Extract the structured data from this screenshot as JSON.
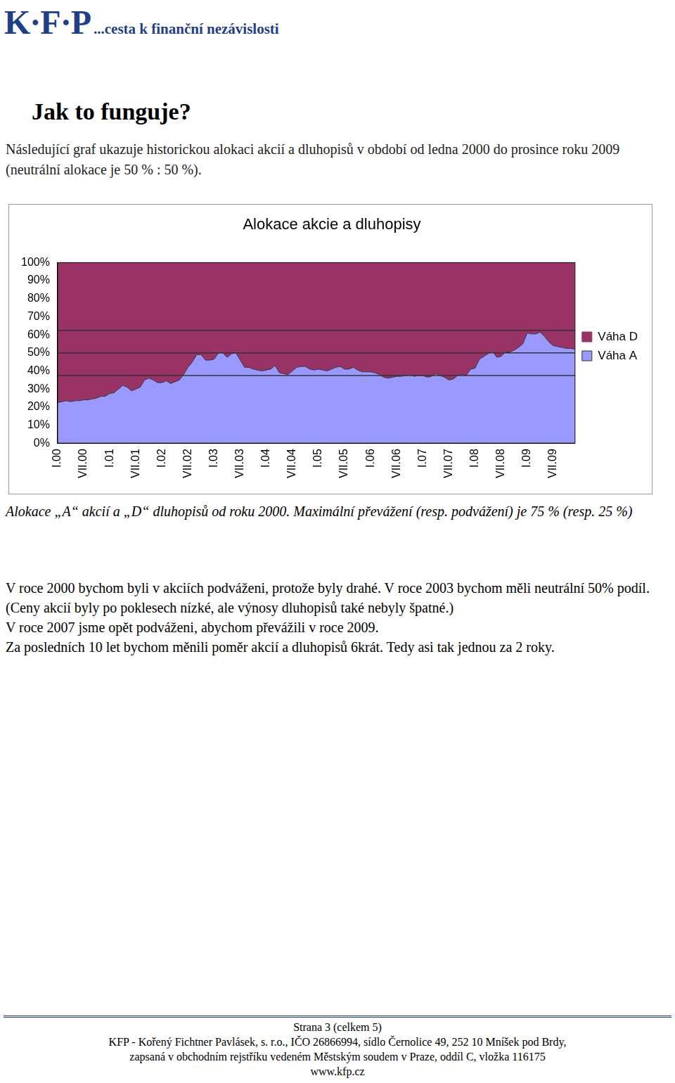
{
  "header": {
    "logo": "K·F·P",
    "tagline": "...cesta k finanční nezávislosti"
  },
  "heading": "Jak to funguje?",
  "intro": "Následující graf ukazuje historickou alokaci akcií a dluhopisů v období od ledna 2000 do prosince roku 2009 (neutrální alokace je 50 % : 50 %).",
  "chart_data": {
    "type": "area",
    "title": "Alokace akcie a dluhopisy",
    "categories": [
      "I.00",
      null,
      null,
      null,
      null,
      null,
      "VII.00",
      null,
      null,
      null,
      null,
      null,
      "I.01",
      null,
      null,
      null,
      null,
      null,
      "VII.01",
      null,
      null,
      null,
      null,
      null,
      "I.02",
      null,
      null,
      null,
      null,
      null,
      "VII.02",
      null,
      null,
      null,
      null,
      null,
      "I.03",
      null,
      null,
      null,
      null,
      null,
      "VII.03",
      null,
      null,
      null,
      null,
      null,
      "I.04",
      null,
      null,
      null,
      null,
      null,
      "VII.04",
      null,
      null,
      null,
      null,
      null,
      "I.05",
      null,
      null,
      null,
      null,
      null,
      "VII.05",
      null,
      null,
      null,
      null,
      null,
      "I.06",
      null,
      null,
      null,
      null,
      null,
      "VII.06",
      null,
      null,
      null,
      null,
      null,
      "I.07",
      null,
      null,
      null,
      null,
      null,
      "VII.07",
      null,
      null,
      null,
      null,
      null,
      "I.08",
      null,
      null,
      null,
      null,
      null,
      "VII.08",
      null,
      null,
      null,
      null,
      null,
      "I.09",
      null,
      null,
      null,
      null,
      null,
      "VII.09",
      null,
      null,
      null,
      null,
      null
    ],
    "series": [
      {
        "name": "Váha D",
        "color": "#993366",
        "values": [
          77.5,
          77,
          76.5,
          77,
          76.5,
          76.5,
          76,
          76,
          75.5,
          75,
          74,
          74,
          72.5,
          72,
          70,
          68,
          69,
          71,
          70,
          69,
          65,
          64,
          65,
          66.5,
          66.5,
          65.5,
          67,
          66,
          65,
          62,
          58,
          55,
          51,
          51,
          54,
          54,
          53.5,
          50,
          50,
          52.5,
          50.5,
          50,
          54,
          58,
          58,
          59,
          59.5,
          60,
          59.5,
          59,
          57,
          61,
          61.5,
          62,
          60,
          58,
          57.5,
          57.5,
          59,
          59.5,
          59,
          59.5,
          60,
          59,
          58,
          57.5,
          59,
          59,
          58,
          59.5,
          60.5,
          60.5,
          60.5,
          61,
          62,
          63.5,
          64,
          63.5,
          63,
          63,
          62.5,
          62,
          63,
          62.5,
          62.5,
          63.5,
          63,
          61.5,
          62.5,
          63.5,
          65,
          64.5,
          62.5,
          62,
          62.5,
          59,
          58.5,
          53.5,
          52,
          50.5,
          49,
          52.5,
          52,
          49.5,
          49.5,
          48.5,
          47,
          45,
          39,
          39.5,
          39.5,
          38.5,
          41,
          44,
          46,
          46.5,
          47,
          47.5,
          47.5,
          48
        ]
      },
      {
        "name": "Váha A",
        "color": "#9999ff",
        "values": [
          22.5,
          23,
          23.5,
          23,
          23.5,
          23.5,
          24,
          24,
          24.5,
          25,
          26,
          26,
          27.5,
          28,
          30,
          32,
          31,
          29,
          30,
          31,
          35,
          36,
          35,
          33.5,
          33.5,
          34.5,
          33,
          34,
          35,
          38,
          42,
          45,
          49,
          49,
          46,
          46,
          46.5,
          50,
          50,
          47.5,
          49.5,
          50,
          46,
          42,
          42,
          41,
          40.5,
          40,
          40.5,
          41,
          43,
          39,
          38.5,
          38,
          40,
          42,
          42.5,
          42.5,
          41,
          40.5,
          41,
          40.5,
          40,
          41,
          42,
          42.5,
          41,
          41,
          42,
          40.5,
          39.5,
          39.5,
          39.5,
          39,
          38,
          36.5,
          36,
          36.5,
          37,
          37,
          37.5,
          38,
          37,
          37.5,
          37.5,
          36.5,
          37,
          38.5,
          37.5,
          36.5,
          35,
          35.5,
          37.5,
          38,
          37.5,
          41,
          41.5,
          46.5,
          48,
          49.5,
          51,
          47.5,
          48,
          50.5,
          50.5,
          51.5,
          53,
          55,
          61,
          60.5,
          60.5,
          61.5,
          59,
          56,
          54,
          53.5,
          53,
          52.5,
          52.5,
          52
        ]
      }
    ],
    "stacked": true,
    "ylim": [
      0,
      100
    ],
    "yticks": [
      {
        "value": 0,
        "label": "0%"
      },
      {
        "value": 10,
        "label": "10%"
      },
      {
        "value": 20,
        "label": "20%"
      },
      {
        "value": 30,
        "label": "30%"
      },
      {
        "value": 40,
        "label": "40%"
      },
      {
        "value": 50,
        "label": "50%"
      },
      {
        "value": 60,
        "label": "60%"
      },
      {
        "value": 70,
        "label": "70%"
      },
      {
        "value": 80,
        "label": "80%"
      },
      {
        "value": 90,
        "label": "90%"
      },
      {
        "value": 100,
        "label": "100%"
      }
    ],
    "reference_lines": [
      37.5,
      50,
      62.5
    ],
    "grid": false,
    "legend": "right"
  },
  "caption": "Alokace „A“ akcií a „D“ dluhopisů od roku 2000. Maximální převážení (resp. podvážení) je 75 % (resp. 25 %)",
  "paragraphs": [
    "V roce 2000 bychom byli v akciích podváženi, protože byly drahé. V roce 2003 bychom měli neutrální 50% podíl. (Ceny akcií byly po poklesech nízké, ale výnosy dluhopisů také nebyly špatné.)",
    "V roce 2007 jsme opět podváženi, abychom převážili v roce 2009.",
    "Za posledních 10 let bychom měnili poměr akcií a dluhopisů 6krát. Tedy asi tak jednou za 2 roky."
  ],
  "footer": {
    "page": "Strana 3 (celkem 5)",
    "lines": [
      "KFP - Kořený Fichtner Pavlásek, s. r.o., IČO 26866994, sídlo Černolice 49, 252 10 Mníšek pod Brdy,",
      "zapsaná v obchodním rejstříku vedeném Městským soudem v Praze, oddíl C, vložka 116175",
      "www.kfp.cz"
    ]
  }
}
